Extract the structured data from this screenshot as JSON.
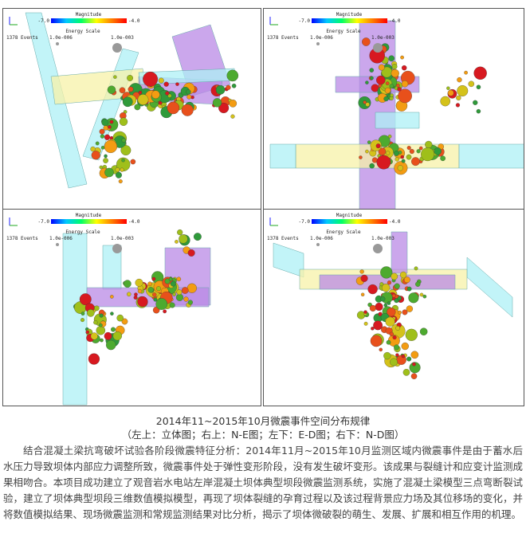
{
  "panels": [
    {
      "magnitude": "Magnitude",
      "mag_min": "-7.0",
      "mag_max": "-4.0",
      "energy": "Energy Scale",
      "energy_min": "1.0e-006",
      "energy_max": "1.0e-003",
      "events": "1378 Events"
    },
    {
      "magnitude": "Magnitude",
      "mag_min": "-7.0",
      "mag_max": "-4.0",
      "energy": "Energy Scale",
      "energy_min": "1.0e-006",
      "energy_max": "1.0e-003",
      "events": "1378 Events"
    },
    {
      "magnitude": "Magnitude",
      "mag_min": "-7.0",
      "mag_max": "-4.0",
      "energy": "Energy Scale",
      "energy_min": "1.0e-006",
      "energy_max": "1.0e-003",
      "events": "1378 Events"
    },
    {
      "magnitude": "Magnitude",
      "mag_min": "-7.0",
      "mag_max": "-4.0",
      "energy": "Energy Scale",
      "energy_min": "1.0e-006",
      "energy_max": "1.0e-003",
      "events": "1378 Events"
    }
  ],
  "caption": {
    "line1": "2014年11~2015年10月微震事件空间分布规律",
    "line2": "（左上：立体图；右上：N-E图；左下：E-D图；右下：N-D图）"
  },
  "paragraph": "结合混凝土梁抗弯破坏试验各阶段微震特征分析：2014年11月~2015年10月监测区域内微震事件是由于蓄水后水压力导致坝体内部应力调整所致，微震事件处于弹性变形阶段，没有发生破坏变形。该成果与裂缝计和应变计监测成果相吻合。本项目成功建立了观音岩水电站左岸混凝土坝体典型坝段微震监测系统，实施了混凝土梁模型三点弯断裂试验，建立了坝体典型坝段三维数值模拟模型，再现了坝体裂缝的孕育过程以及该过程背景应力场及其位移场的变化，并将数值模拟结果、现场微震监测和常规监测结果对比分析，揭示了坝体微破裂的萌生、发展、扩展和相互作用的机理。"
}
